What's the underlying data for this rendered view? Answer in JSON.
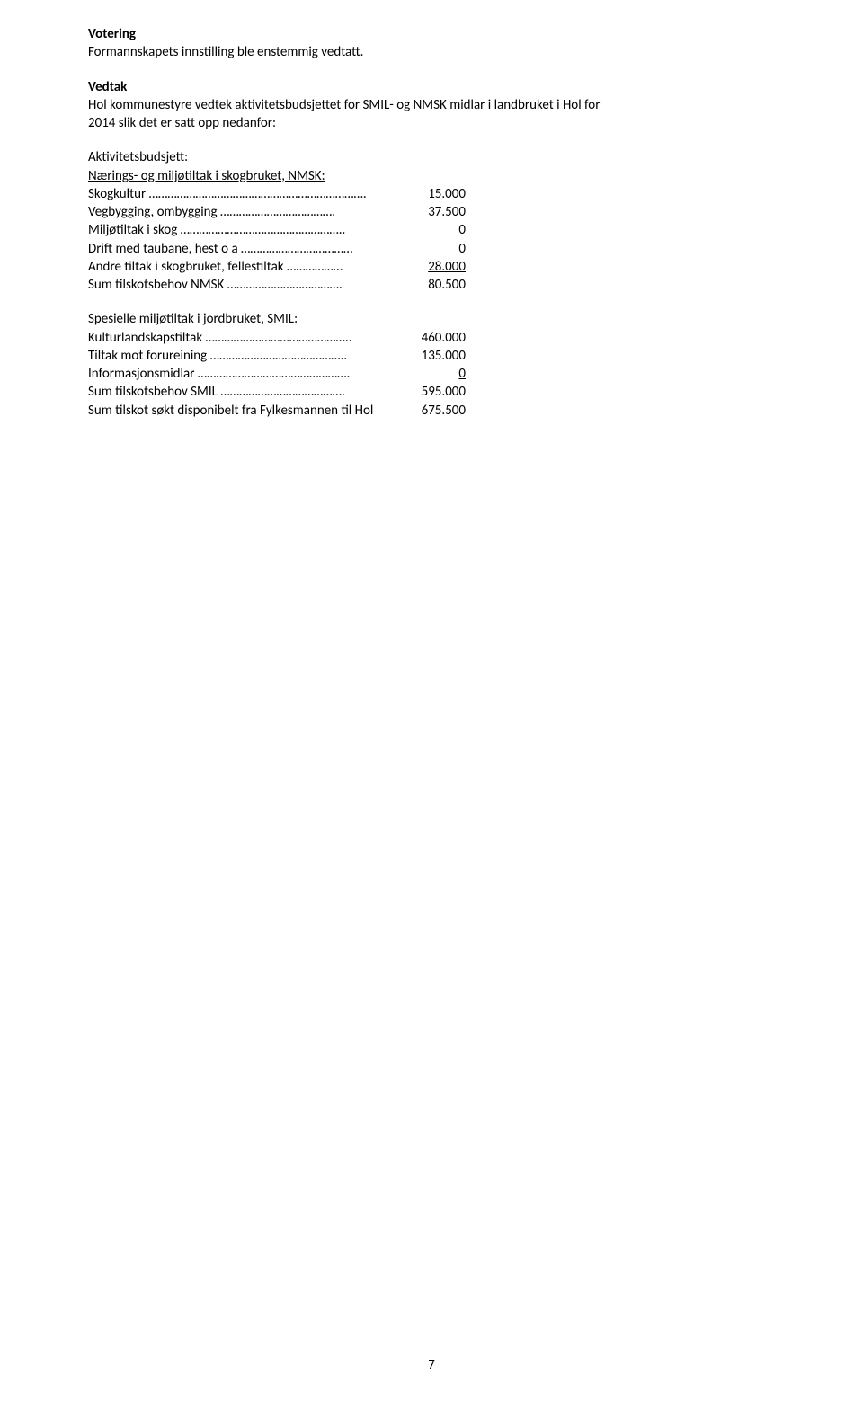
{
  "heading1": "Votering",
  "line2": "Formannskapets innstilling ble enstemmig vedtatt.",
  "heading2": "Vedtak",
  "paragraph1a": "Hol kommunestyre vedtek aktivitetsbudsjettet for SMIL- og NMSK midlar i landbruket i Hol for",
  "paragraph1b": "2014 slik det er satt opp nedanfor:",
  "budgetLabel": "Aktivitetsbudsjett:",
  "subhead1": "Nærings- og miljøtiltak i skogbruket, NMSK:",
  "rows1": [
    {
      "label": "Skogkultur …………………………………………………………….",
      "value": "15.000"
    },
    {
      "label": "Vegbygging, ombygging ……………………………….",
      "value": "37.500"
    },
    {
      "label": "Miljøtiltak i skog ……………………………………………..",
      "value": "0"
    },
    {
      "label": "Drift med taubane, hest o a ………………………………",
      "value": "0"
    },
    {
      "label": "Andre tiltak i skogbruket, fellestiltak ………………",
      "value": "  28.000",
      "underline": true
    },
    {
      "label": "Sum tilskotsbehov NMSK ……………………………….",
      "value": "80.500"
    }
  ],
  "subhead2": "Spesielle miljøtiltak i jordbruket, SMIL:",
  "rows2": [
    {
      "label": "Kulturlandskapstiltak ………………………………………..",
      "value": "460.000"
    },
    {
      "label": "Tiltak mot forureining ……………………………………..",
      "value": "135.000"
    },
    {
      "label": "Informasjonsmidlar ………………………………………….",
      "value": "            0",
      "underline": true
    },
    {
      "label": "Sum tilskotsbehov SMIL ………………………………….",
      "value": "595.000"
    },
    {
      "label": "Sum tilskot søkt disponibelt fra Fylkesmannen til Hol",
      "value": "675.500"
    }
  ],
  "pageNumber": "7"
}
